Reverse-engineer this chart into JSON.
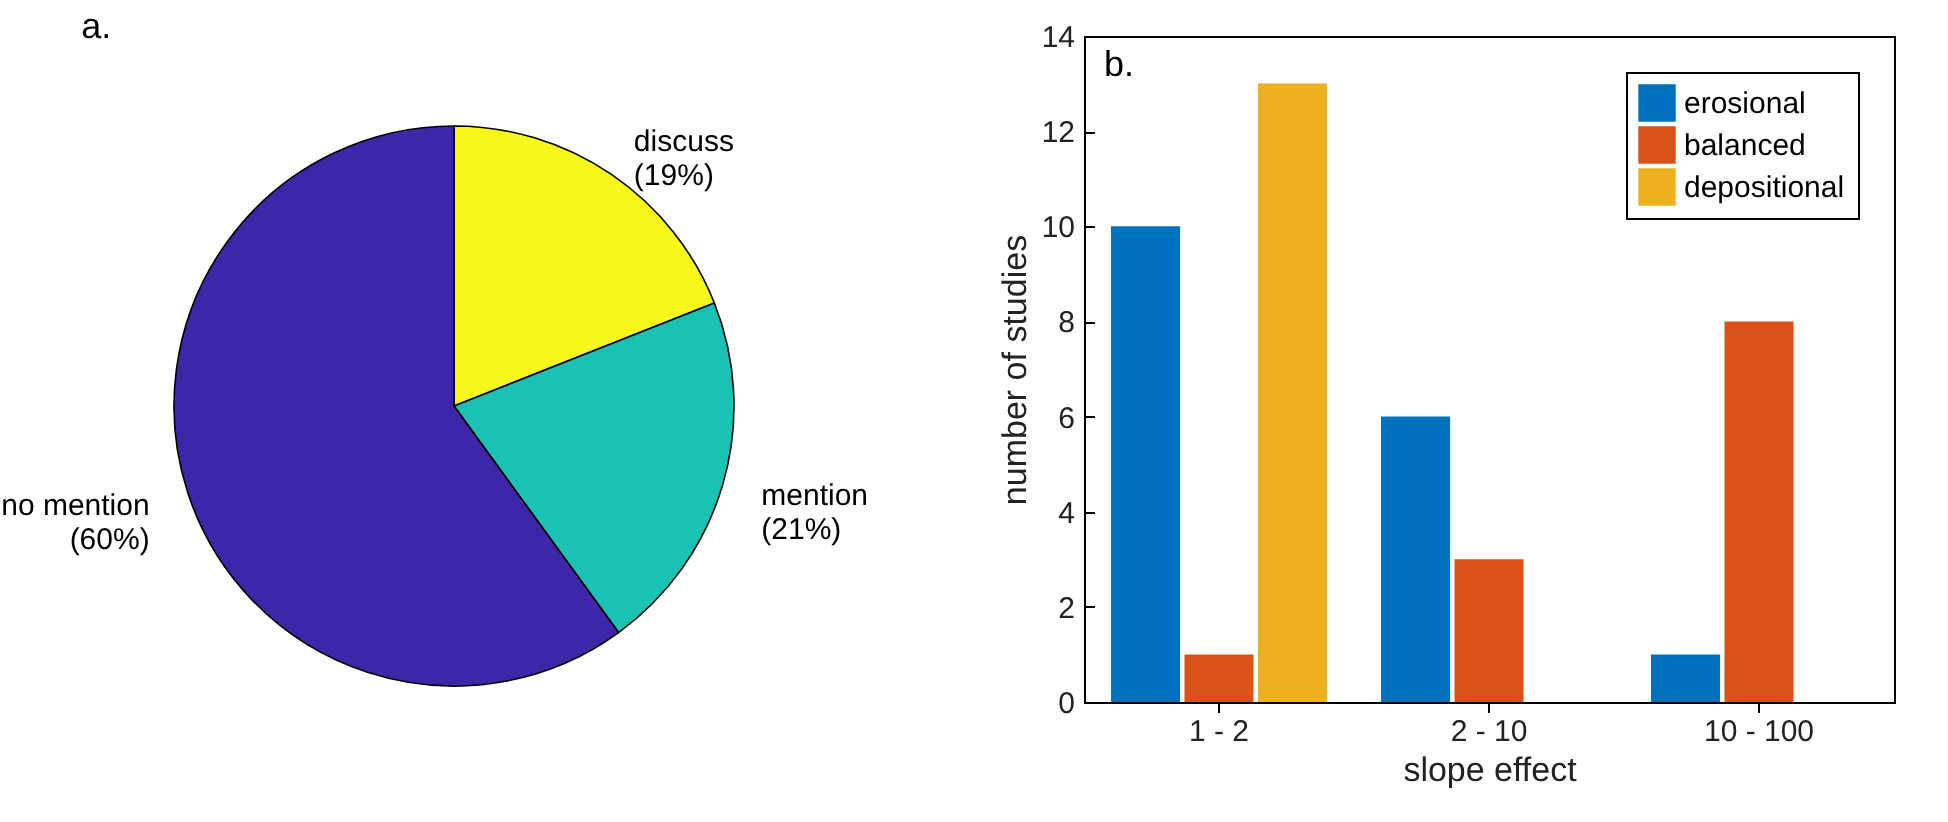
{
  "chart_data": [
    {
      "type": "pie",
      "title": "a.",
      "categories": [
        "discuss",
        "mention",
        "no mention"
      ],
      "values": [
        19,
        21,
        60
      ],
      "colors": [
        "#f7f71a",
        "#1ac1b5",
        "#3d27a8"
      ],
      "value_labels": [
        "(19%)",
        "(21%)",
        "(60%)"
      ]
    },
    {
      "type": "bar",
      "title": "b.",
      "categories": [
        "1 - 2",
        "2 - 10",
        "10 - 100"
      ],
      "xlabel": "slope effect",
      "ylabel": "number of studies",
      "ylim": [
        0,
        14
      ],
      "yticks": [
        0,
        2,
        4,
        6,
        8,
        10,
        12,
        14
      ],
      "grid": false,
      "legend": "top right",
      "series": [
        {
          "name": "erosional",
          "color": "#0072bd",
          "values": [
            10,
            6,
            1
          ]
        },
        {
          "name": "balanced",
          "color": "#d95319",
          "values": [
            1,
            3,
            8
          ]
        },
        {
          "name": "depositional",
          "color": "#edb120",
          "values": [
            13,
            0,
            0
          ]
        }
      ]
    }
  ]
}
